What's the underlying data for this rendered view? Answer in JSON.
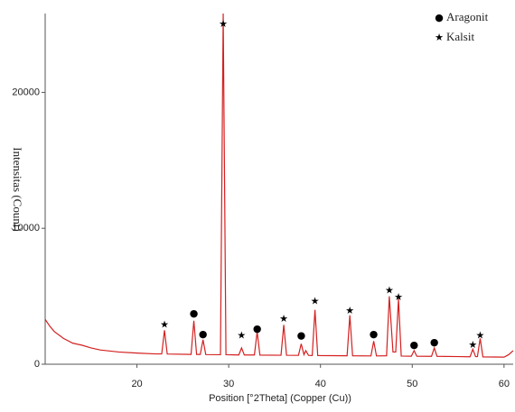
{
  "chart_data": {
    "type": "line",
    "xlabel": "Position [°2Theta] (Copper (Cu))",
    "ylabel": "Intensitas (Count)",
    "color": "#d42020",
    "x": [
      10,
      10.5,
      11,
      12,
      13,
      14,
      15,
      16,
      18,
      20,
      22,
      22.7,
      23.0,
      23.3,
      25.9,
      26.2,
      26.5,
      26.9,
      27.2,
      27.5,
      29.1,
      29.4,
      29.7,
      31.1,
      31.4,
      31.7,
      32.8,
      33.1,
      33.4,
      35.7,
      36.0,
      36.3,
      37.6,
      37.9,
      38.2,
      38.4,
      38.7,
      39.1,
      39.4,
      39.7,
      42.9,
      43.2,
      43.5,
      45.5,
      45.8,
      46.1,
      47.2,
      47.5,
      47.9,
      48.2,
      48.5,
      48.8,
      49.9,
      50.2,
      50.5,
      52.1,
      52.4,
      52.7,
      56.3,
      56.6,
      56.9,
      57.1,
      57.4,
      57.7,
      60,
      60.5,
      61
    ],
    "values": [
      3300,
      2800,
      2400,
      1900,
      1550,
      1400,
      1200,
      1050,
      900,
      820,
      760,
      760,
      2500,
      750,
      720,
      3200,
      720,
      720,
      1800,
      710,
      700,
      25800,
      700,
      680,
      1200,
      680,
      680,
      2400,
      670,
      660,
      2900,
      660,
      650,
      1500,
      700,
      1000,
      650,
      640,
      4000,
      640,
      620,
      3600,
      620,
      610,
      1700,
      610,
      620,
      5000,
      900,
      900,
      4800,
      600,
      590,
      1000,
      590,
      580,
      1200,
      580,
      550,
      1100,
      560,
      560,
      1900,
      540,
      520,
      700,
      1000
    ],
    "markers": [
      {
        "name": "Aragonit",
        "symbol": "●",
        "x": [
          26.2,
          27.2,
          33.1,
          37.9,
          45.8,
          50.2,
          52.4
        ],
        "values": [
          3700,
          2200,
          2600,
          2100,
          2200,
          1400,
          1600
        ]
      },
      {
        "name": "Kalsit",
        "symbol": "★",
        "x": [
          23.0,
          29.4,
          31.4,
          36.0,
          39.4,
          43.2,
          47.5,
          48.5,
          56.6,
          57.4
        ],
        "values": [
          2900,
          25000,
          2100,
          3300,
          4600,
          3900,
          5400,
          4900,
          1400,
          2100
        ]
      }
    ],
    "xlim": [
      10,
      61
    ],
    "ylim": [
      0,
      25800
    ],
    "xticks": [
      20,
      30,
      40,
      50,
      60
    ],
    "yticks": [
      0,
      10000,
      20000
    ]
  }
}
